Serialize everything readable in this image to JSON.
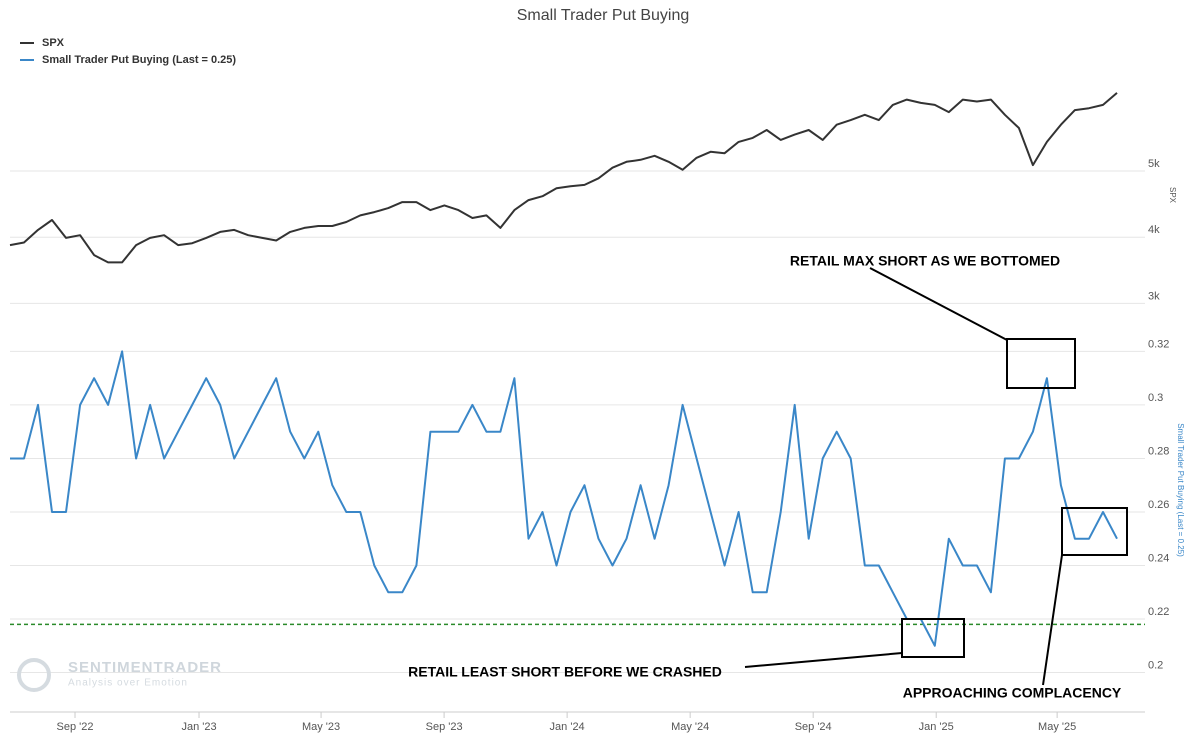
{
  "chart_data": [
    {
      "type": "line",
      "title": "Small Trader Put Buying",
      "y_label": "SPX",
      "ylim": [
        2900,
        6300
      ],
      "yticks": [
        {
          "value": 3000,
          "label": "3k"
        },
        {
          "value": 4000,
          "label": "4k"
        },
        {
          "value": 5000,
          "label": "5k"
        }
      ],
      "grid": true,
      "xlim": [
        0,
        81
      ],
      "series": [
        {
          "name": "SPX",
          "color": "#333333",
          "values": [
            3880,
            3920,
            4110,
            4260,
            3990,
            4030,
            3730,
            3620,
            3620,
            3880,
            3990,
            4030,
            3880,
            3910,
            3990,
            4080,
            4110,
            4030,
            3990,
            3950,
            4080,
            4140,
            4170,
            4170,
            4230,
            4330,
            4380,
            4440,
            4530,
            4530,
            4410,
            4480,
            4410,
            4290,
            4330,
            4140,
            4410,
            4560,
            4620,
            4740,
            4770,
            4790,
            4890,
            5050,
            5140,
            5170,
            5230,
            5140,
            5020,
            5200,
            5290,
            5270,
            5440,
            5500,
            5620,
            5470,
            5550,
            5620,
            5470,
            5700,
            5770,
            5850,
            5770,
            6000,
            6080,
            6030,
            6000,
            5890,
            6080,
            6050,
            6080,
            5850,
            5650,
            5090,
            5440,
            5700,
            5920,
            5950,
            6000,
            6180
          ]
        }
      ]
    },
    {
      "type": "line",
      "y_label": "Small Trader Put Buying (Last = 0.25)",
      "ylim": [
        0.186,
        0.328
      ],
      "yticks": [
        0.2,
        0.22,
        0.24,
        0.26,
        0.28,
        0.3,
        0.32
      ],
      "grid": true,
      "xlim": [
        0,
        81
      ],
      "xticks": [
        {
          "value": 4.64,
          "label": "Sep '22"
        },
        {
          "value": 13.49,
          "label": "Jan '23"
        },
        {
          "value": 22.2,
          "label": "May '23"
        },
        {
          "value": 30.98,
          "label": "Sep '23"
        },
        {
          "value": 39.76,
          "label": "Jan '24"
        },
        {
          "value": 48.54,
          "label": "May '24"
        },
        {
          "value": 57.32,
          "label": "Sep '24"
        },
        {
          "value": 66.1,
          "label": "Jan '25"
        },
        {
          "value": 74.73,
          "label": "May '25"
        }
      ],
      "hline": {
        "value": 0.218,
        "color": "#2a8a2a"
      },
      "annotations": [
        "RETAIL MAX SHORT AS WE BOTTOMED",
        "RETAIL LEAST SHORT BEFORE WE CRASHED",
        "APPROACHING COMPLACENCY"
      ],
      "series": [
        {
          "name": "Small Trader Put Buying (Last = 0.25)",
          "color": "#3a87c8",
          "values": [
            0.28,
            0.28,
            0.3,
            0.26,
            0.26,
            0.3,
            0.31,
            0.3,
            0.32,
            0.28,
            0.3,
            0.28,
            0.29,
            0.3,
            0.31,
            0.3,
            0.28,
            0.29,
            0.3,
            0.31,
            0.29,
            0.28,
            0.29,
            0.27,
            0.26,
            0.26,
            0.24,
            0.23,
            0.23,
            0.24,
            0.29,
            0.29,
            0.29,
            0.3,
            0.29,
            0.29,
            0.31,
            0.25,
            0.26,
            0.24,
            0.26,
            0.27,
            0.25,
            0.24,
            0.25,
            0.27,
            0.25,
            0.27,
            0.3,
            0.28,
            0.26,
            0.24,
            0.26,
            0.23,
            0.23,
            0.26,
            0.3,
            0.25,
            0.28,
            0.29,
            0.28,
            0.24,
            0.24,
            0.23,
            0.22,
            0.22,
            0.21,
            0.25,
            0.24,
            0.24,
            0.23,
            0.28,
            0.28,
            0.29,
            0.31,
            0.27,
            0.25,
            0.25,
            0.26,
            0.25
          ]
        }
      ]
    }
  ],
  "watermark": [
    "SENTIMENTRADER",
    "Analysis over Emotion"
  ]
}
